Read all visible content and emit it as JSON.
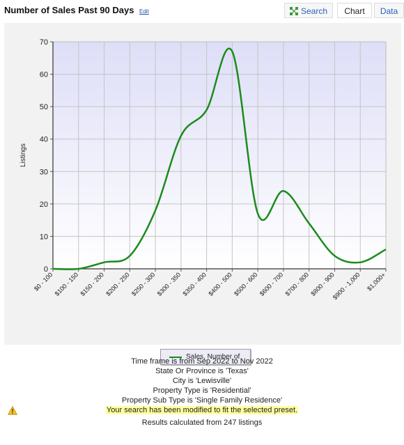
{
  "header": {
    "title": "Number of Sales Past 90 Days",
    "edit_label": "Edit",
    "buttons": {
      "search": "Search",
      "chart": "Chart",
      "data": "Data"
    }
  },
  "chart_data": {
    "type": "line",
    "title": "",
    "xlabel": "",
    "ylabel": "Listings",
    "ylim": [
      0,
      70
    ],
    "yticks": [
      0,
      10,
      20,
      30,
      40,
      50,
      60,
      70
    ],
    "grid": true,
    "legend_position": "bottom-center",
    "categories": [
      "$0 - 100",
      "$100 - 150",
      "$150 - 200",
      "$200 - 250",
      "$250 - 300",
      "$300 - 350",
      "$350 - 400",
      "$400 - 500",
      "$500 - 600",
      "$600 - 700",
      "$700 - 800",
      "$800 - 900",
      "$900 - 1,000",
      "$1,000+"
    ],
    "series": [
      {
        "name": "Sales, Number of",
        "color": "#1a8c1a",
        "values": [
          0,
          0,
          2,
          4,
          18,
          41,
          49,
          67,
          17,
          24,
          14,
          4,
          2,
          6
        ]
      }
    ]
  },
  "notes": {
    "lines": [
      "Time frame is from Sep 2022 to Nov 2022",
      "State Or Province is 'Texas'",
      "City is 'Lewisville'",
      "Property Type is 'Residential'",
      "Property Sub Type is 'Single Family Residence'"
    ],
    "warning": "Your search has been modified to fit the selected preset.",
    "results": "Results calculated from 247 listings"
  },
  "colors": {
    "accent": "#2a62b8",
    "series": "#1a8c1a",
    "warning_bg": "#ffffa0"
  }
}
